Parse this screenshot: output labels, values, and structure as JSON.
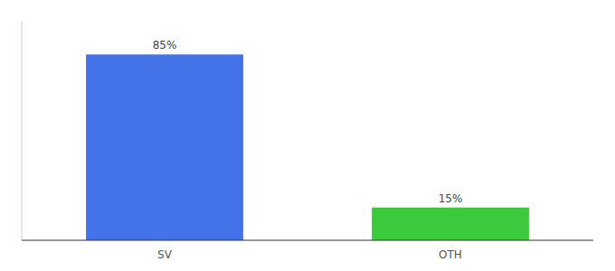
{
  "chart_data": {
    "type": "bar",
    "categories": [
      "SV",
      "OTH"
    ],
    "values": [
      85,
      15
    ],
    "value_labels": [
      "85%",
      "15%"
    ],
    "data_labels": true,
    "colors": [
      "#4472e8",
      "#3dc93d"
    ],
    "ylim": [
      0,
      100
    ],
    "grid": false,
    "tick_labels": "x"
  }
}
